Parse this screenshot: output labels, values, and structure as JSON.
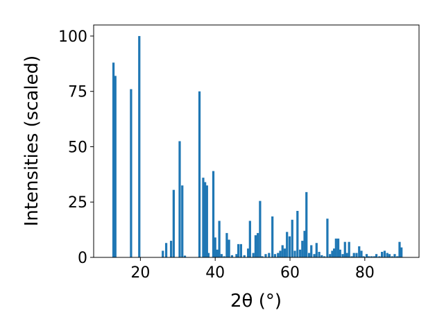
{
  "chart_data": {
    "type": "bar",
    "ylabel": "Intensities (scaled)",
    "xlabel": "2θ (°)",
    "xlim": [
      7.5,
      94.5
    ],
    "ylim": [
      0,
      105
    ],
    "xticks": [
      20,
      40,
      60,
      80
    ],
    "yticks": [
      0,
      25,
      50,
      75,
      100
    ],
    "grid": false,
    "bar_color": "#1f77b4",
    "bar_width": 0.6,
    "x": [
      12.8,
      13.3,
      17.5,
      19.7,
      26.0,
      26.9,
      28.2,
      28.9,
      30.5,
      31.2,
      31.9,
      35.8,
      36.8,
      37.3,
      37.8,
      38.2,
      39.5,
      40.0,
      40.5,
      41.1,
      41.7,
      42.4,
      43.1,
      43.7,
      44.5,
      45.7,
      46.2,
      46.9,
      47.8,
      48.8,
      49.3,
      50.2,
      50.8,
      51.4,
      52.0,
      52.6,
      53.5,
      54.4,
      55.3,
      56.0,
      56.8,
      57.4,
      58.0,
      58.6,
      59.2,
      59.9,
      60.6,
      61.3,
      62.0,
      62.7,
      63.3,
      63.9,
      64.4,
      65.1,
      65.7,
      66.5,
      67.1,
      67.8,
      68.5,
      69.2,
      70.0,
      70.7,
      71.3,
      71.8,
      72.3,
      72.9,
      73.4,
      74.1,
      74.7,
      75.2,
      75.8,
      76.5,
      77.1,
      77.8,
      78.5,
      79.1,
      79.7,
      80.5,
      81.1,
      81.8,
      82.5,
      83.1,
      83.9,
      84.6,
      85.3,
      86.0,
      86.6,
      87.3,
      88.0,
      88.7,
      89.3,
      89.8
    ],
    "values": [
      88,
      82,
      76,
      100,
      3,
      6.5,
      7.5,
      30.5,
      52.5,
      32.5,
      0.8,
      75,
      36,
      34,
      32.5,
      2,
      39,
      9,
      3.5,
      16.5,
      1.5,
      0.5,
      11,
      8,
      1,
      1.5,
      6,
      6,
      1,
      4,
      16.5,
      2,
      10,
      11,
      25.5,
      0.5,
      1.5,
      2,
      18.5,
      1.5,
      2,
      3,
      5.5,
      4,
      11.5,
      9.5,
      17,
      3,
      21,
      3.5,
      7.5,
      12,
      29.5,
      2,
      5.5,
      1.5,
      6.5,
      2.5,
      1,
      0.5,
      17.5,
      1.5,
      3,
      4,
      8.5,
      8.5,
      3.5,
      1.5,
      7,
      2,
      7,
      0.5,
      2,
      2,
      5,
      3,
      0.5,
      1.5,
      0.5,
      0.5,
      0.5,
      1.5,
      0.5,
      2.5,
      3,
      2,
      1.5,
      0.5,
      1.5,
      0.5,
      7,
      4.5
    ]
  }
}
